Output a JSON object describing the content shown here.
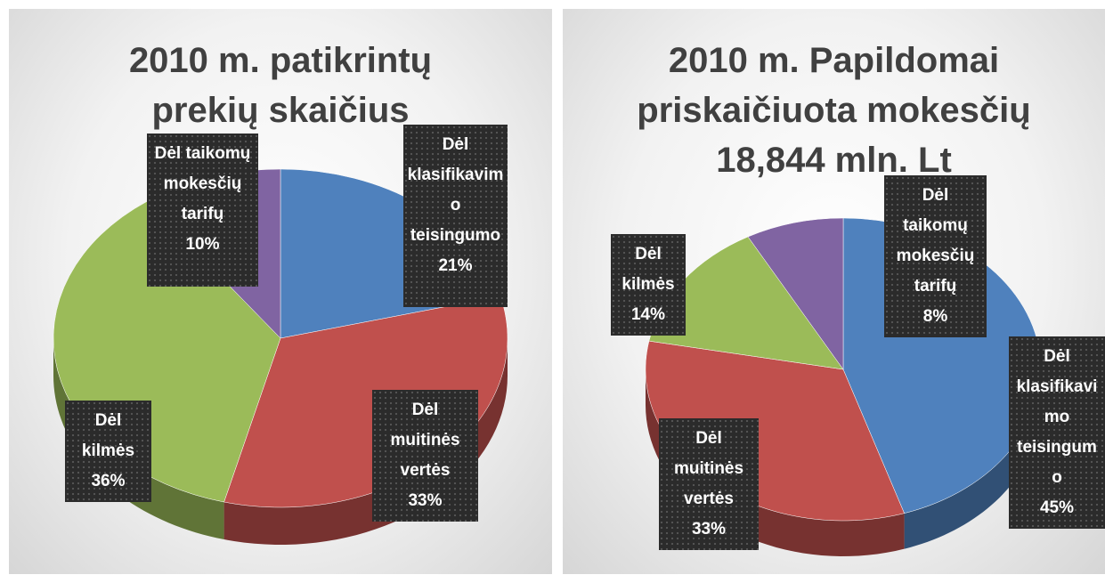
{
  "chart_data": [
    {
      "type": "pie",
      "title": "2010 m.  patikrintų prekių skaičius",
      "categories": [
        "Dėl klasifikavimo teisingumo",
        "Dėl muitinės vertės",
        "Dėl kilmės",
        "Dėl taikomų mokesčių tarifų"
      ],
      "values": [
        21,
        33,
        36,
        10
      ],
      "value_labels": [
        "21%",
        "33%",
        "36%",
        "10%"
      ],
      "colors": [
        "#4f81bd",
        "#c0504d",
        "#9bbb59",
        "#8064a2"
      ]
    },
    {
      "type": "pie",
      "title": "2010 m.  Papildomai priskaičiuota mokesčių 18,844 mln. Lt",
      "categories": [
        "Dėl klasifikavimo teisingumo",
        "Dėl muitinės vertės",
        "Dėl kilmės",
        "Dėl taikomų mokesčių tarifų"
      ],
      "values": [
        45,
        33,
        14,
        8
      ],
      "value_labels": [
        "45%",
        "33%",
        "14%",
        "8%"
      ],
      "colors": [
        "#4f81bd",
        "#c0504d",
        "#9bbb59",
        "#8064a2"
      ]
    }
  ]
}
